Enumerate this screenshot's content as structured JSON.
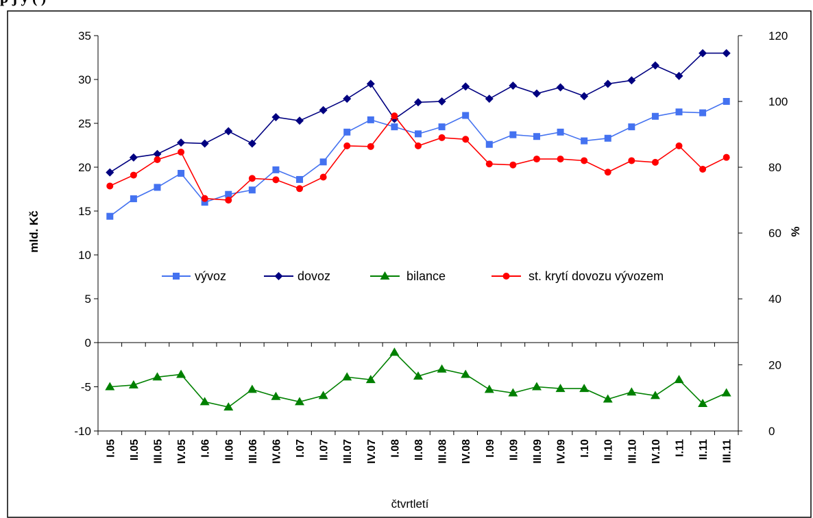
{
  "header_fragment": "p      j             y                    (                  )",
  "chart_data": {
    "type": "line",
    "categories": [
      "I.05",
      "II.05",
      "III.05",
      "IV.05",
      "I.06",
      "II.06",
      "III.06",
      "IV.06",
      "I.07",
      "II.07",
      "III.07",
      "IV.07",
      "I.08",
      "II.08",
      "III.08",
      "IV.08",
      "I.09",
      "II.09",
      "III.09",
      "IV.09",
      "I.10",
      "II.10",
      "III.10",
      "IV.10",
      "I.11",
      "II.11",
      "III.11"
    ],
    "xlabel": "čtvrtletí",
    "ylabel_left": "mld. Kč",
    "ylabel_right": "%",
    "upper_left_ticks": [
      "35",
      "30",
      "25",
      "20",
      "15",
      "10",
      "5",
      "0"
    ],
    "upper_right_ticks": [
      "120",
      "100",
      "80",
      "60",
      "40"
    ],
    "lower_left_ticks": [
      "-5",
      "-10"
    ],
    "lower_right_ticks": [
      "20",
      "0"
    ],
    "upper_left_range": [
      0,
      35
    ],
    "upper_right_range": [
      26.7,
      120
    ],
    "lower_left_range": [
      -10,
      0
    ],
    "lower_right_range": [
      0,
      26.7
    ],
    "series": [
      {
        "name": "vývoz",
        "axis": "upper-left",
        "color": "#4472F0",
        "marker": "square",
        "values": [
          14.4,
          16.4,
          17.7,
          19.3,
          16.0,
          16.9,
          17.4,
          19.7,
          18.6,
          20.6,
          24.0,
          25.4,
          24.6,
          23.8,
          24.6,
          25.9,
          22.6,
          23.7,
          23.5,
          24.0,
          23.0,
          23.3,
          24.6,
          25.8,
          26.3,
          26.2,
          27.5
        ]
      },
      {
        "name": "dovoz",
        "axis": "upper-left",
        "color": "#000080",
        "marker": "diamond",
        "values": [
          19.4,
          21.1,
          21.5,
          22.8,
          22.7,
          24.1,
          22.7,
          25.7,
          25.3,
          26.5,
          27.8,
          29.5,
          25.5,
          27.4,
          27.5,
          29.2,
          27.8,
          29.3,
          28.4,
          29.1,
          28.1,
          29.5,
          29.9,
          31.6,
          30.4,
          33.0,
          33.0
        ]
      },
      {
        "name": "bilance",
        "axis": "lower-left",
        "color": "#008000",
        "marker": "triangle",
        "values": [
          -5.0,
          -4.8,
          -3.9,
          -3.6,
          -6.7,
          -7.3,
          -5.3,
          -6.1,
          -6.7,
          -6.0,
          -3.9,
          -4.2,
          -1.1,
          -3.8,
          -3.0,
          -3.6,
          -5.3,
          -5.7,
          -5.0,
          -5.2,
          -5.2,
          -6.4,
          -5.6,
          -6.0,
          -4.2,
          -6.9,
          -5.7
        ]
      },
      {
        "name": "st. krytí dovozu vývozem",
        "axis": "upper-right",
        "color": "#FF0000",
        "marker": "circle",
        "values": [
          74.3,
          77.6,
          82.3,
          84.6,
          70.5,
          70.0,
          76.6,
          76.2,
          73.5,
          77.0,
          86.5,
          86.3,
          95.6,
          86.5,
          89.0,
          88.5,
          81.0,
          80.7,
          82.5,
          82.5,
          82.0,
          78.5,
          82.0,
          81.5,
          86.5,
          79.4,
          83.0
        ]
      }
    ],
    "legend": [
      "vývoz",
      "dovoz",
      "bilance",
      "st. krytí dovozu vývozem"
    ],
    "legend_placement": "center"
  },
  "colors": {
    "axis": "#000000",
    "background": "#ffffff"
  }
}
